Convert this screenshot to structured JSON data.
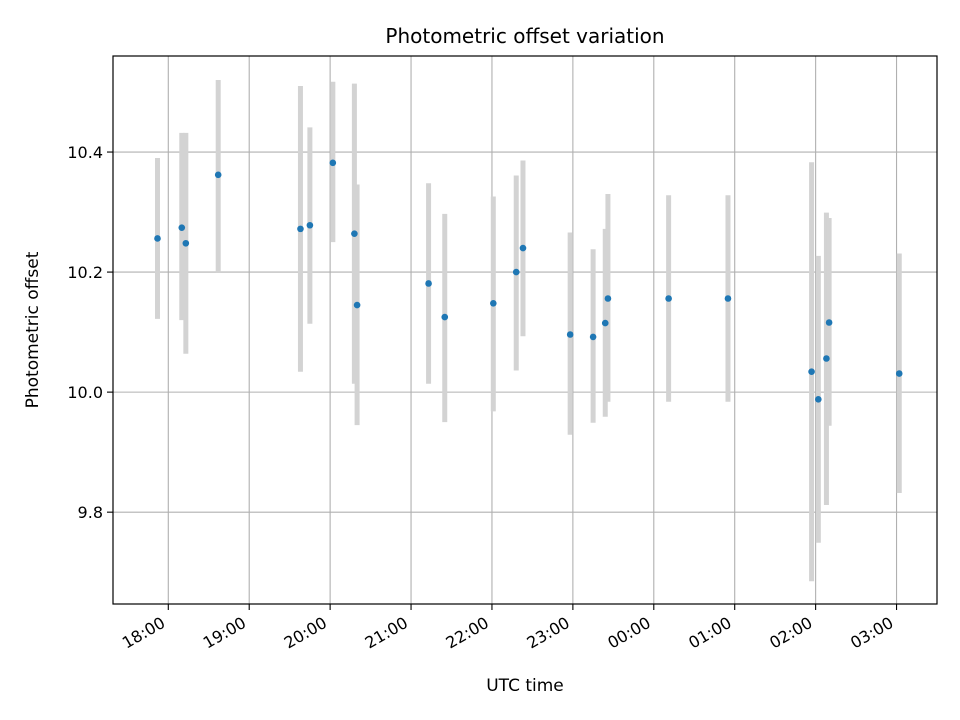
{
  "chart_data": {
    "type": "scatter",
    "title": "Photometric offset variation",
    "xlabel": "UTC time",
    "ylabel": "Photometric offset",
    "grid": true,
    "point_color": "#1f77b4",
    "errorbar_color": "#d3d3d3",
    "x_ticks": [
      "18:00",
      "19:00",
      "20:00",
      "21:00",
      "22:00",
      "23:00",
      "00:00",
      "01:00",
      "02:00",
      "03:00"
    ],
    "x_tick_values": [
      "17:50",
      "18:50",
      "19:50",
      "20:50",
      "21:50",
      "22:50",
      "23:50",
      "00:50",
      "01:50",
      "02:50"
    ],
    "xlim": [
      "17:09",
      "03:20"
    ],
    "y_ticks": [
      "9.8",
      "10.0",
      "10.2",
      "10.4"
    ],
    "y_tick_values": [
      9.8,
      10.0,
      10.2,
      10.4
    ],
    "ylim": [
      9.647,
      10.56
    ],
    "points": [
      {
        "time": "17:42",
        "y": 10.256,
        "low": 10.122,
        "high": 10.39
      },
      {
        "time": "18:00",
        "y": 10.274,
        "low": 10.12,
        "high": 10.432
      },
      {
        "time": "18:03",
        "y": 10.248,
        "low": 10.064,
        "high": 10.432
      },
      {
        "time": "18:27",
        "y": 10.362,
        "low": 10.2,
        "high": 10.52
      },
      {
        "time": "19:28",
        "y": 10.272,
        "low": 10.034,
        "high": 10.51
      },
      {
        "time": "19:35",
        "y": 10.278,
        "low": 10.114,
        "high": 10.441
      },
      {
        "time": "19:52",
        "y": 10.382,
        "low": 10.25,
        "high": 10.517
      },
      {
        "time": "20:08",
        "y": 10.264,
        "low": 10.014,
        "high": 10.514
      },
      {
        "time": "20:10",
        "y": 10.145,
        "low": 9.945,
        "high": 10.346
      },
      {
        "time": "21:03",
        "y": 10.181,
        "low": 10.014,
        "high": 10.348
      },
      {
        "time": "21:15",
        "y": 10.125,
        "low": 9.95,
        "high": 10.297
      },
      {
        "time": "21:51",
        "y": 10.148,
        "low": 9.968,
        "high": 10.326
      },
      {
        "time": "22:08",
        "y": 10.2,
        "low": 10.036,
        "high": 10.361
      },
      {
        "time": "22:13",
        "y": 10.24,
        "low": 10.093,
        "high": 10.386
      },
      {
        "time": "22:48",
        "y": 10.096,
        "low": 9.929,
        "high": 10.266
      },
      {
        "time": "23:05",
        "y": 10.092,
        "low": 9.949,
        "high": 10.238
      },
      {
        "time": "23:14",
        "y": 10.115,
        "low": 9.959,
        "high": 10.272
      },
      {
        "time": "23:16",
        "y": 10.156,
        "low": 9.984,
        "high": 10.33
      },
      {
        "time": "00:01",
        "y": 10.156,
        "low": 9.984,
        "high": 10.328
      },
      {
        "time": "00:45",
        "y": 10.156,
        "low": 9.984,
        "high": 10.328
      },
      {
        "time": "01:47",
        "y": 10.034,
        "low": 9.685,
        "high": 10.383
      },
      {
        "time": "01:52",
        "y": 9.988,
        "low": 9.749,
        "high": 10.227
      },
      {
        "time": "01:58",
        "y": 10.056,
        "low": 9.812,
        "high": 10.299
      },
      {
        "time": "02:00",
        "y": 10.116,
        "low": 9.944,
        "high": 10.29
      },
      {
        "time": "02:52",
        "y": 10.031,
        "low": 9.832,
        "high": 10.231
      }
    ]
  }
}
